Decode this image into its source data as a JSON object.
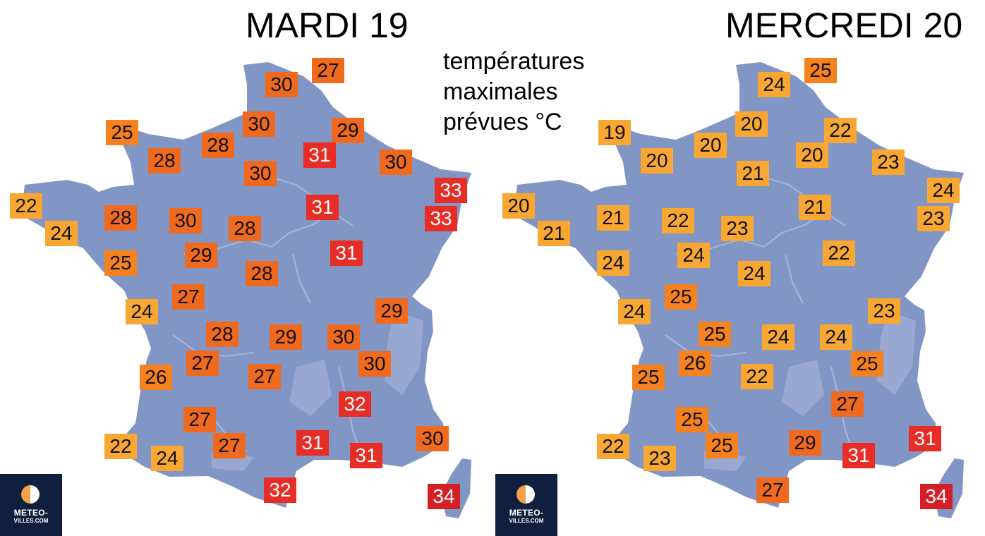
{
  "legend": [
    "températures",
    "maximales",
    "prévues °C"
  ],
  "colors": {
    "map_fill": "#8296c6",
    "river": "#a7b4d8",
    "relief": "#9fadd4",
    "logo_bg": "#0f1f3d",
    "scale": {
      "low": "#f9a733",
      "mid": "#f5821f",
      "high": "#ef6a1f",
      "very_high": "#e82d26",
      "extreme": "#d41f27"
    }
  },
  "logo": {
    "line1": "METEO-",
    "line2": "VILLES.COM",
    "icon": "half-moon-logo-icon"
  },
  "maps": [
    {
      "title": "MARDI 19",
      "temps": [
        {
          "region": "cap-gris-nez",
          "value": "30"
        },
        {
          "region": "dunkerque",
          "value": "27"
        },
        {
          "region": "cherbourg",
          "value": "25"
        },
        {
          "region": "caen",
          "value": "28"
        },
        {
          "region": "rouen",
          "value": "28"
        },
        {
          "region": "amiens",
          "value": "30"
        },
        {
          "region": "charleville",
          "value": "29"
        },
        {
          "region": "reims",
          "value": "31"
        },
        {
          "region": "paris",
          "value": "30"
        },
        {
          "region": "metz",
          "value": "30"
        },
        {
          "region": "strasbourg",
          "value": "33"
        },
        {
          "region": "colmar",
          "value": "33"
        },
        {
          "region": "troyes",
          "value": "31"
        },
        {
          "region": "brest",
          "value": "22"
        },
        {
          "region": "quimper",
          "value": "24"
        },
        {
          "region": "rennes",
          "value": "28"
        },
        {
          "region": "le-mans",
          "value": "30"
        },
        {
          "region": "orleans",
          "value": "28"
        },
        {
          "region": "dijon",
          "value": "31"
        },
        {
          "region": "nantes",
          "value": "25"
        },
        {
          "region": "tours",
          "value": "29"
        },
        {
          "region": "bourges",
          "value": "28"
        },
        {
          "region": "poitiers",
          "value": "27"
        },
        {
          "region": "la-rochelle",
          "value": "24"
        },
        {
          "region": "geneve",
          "value": "29"
        },
        {
          "region": "limoges",
          "value": "28"
        },
        {
          "region": "clermont",
          "value": "29"
        },
        {
          "region": "lyon",
          "value": "30"
        },
        {
          "region": "grenoble",
          "value": "30"
        },
        {
          "region": "perigueux",
          "value": "27"
        },
        {
          "region": "bordeaux",
          "value": "26"
        },
        {
          "region": "aurillac",
          "value": "27"
        },
        {
          "region": "montelimar",
          "value": "32"
        },
        {
          "region": "agen",
          "value": "27"
        },
        {
          "region": "biarritz",
          "value": "22"
        },
        {
          "region": "pau",
          "value": "24"
        },
        {
          "region": "toulouse",
          "value": "27"
        },
        {
          "region": "montpellier",
          "value": "31"
        },
        {
          "region": "marseille",
          "value": "31"
        },
        {
          "region": "nice",
          "value": "30"
        },
        {
          "region": "perpignan",
          "value": "32"
        },
        {
          "region": "ajaccio",
          "value": "34"
        }
      ]
    },
    {
      "title": "MERCREDI 20",
      "temps": [
        {
          "region": "cap-gris-nez",
          "value": "24"
        },
        {
          "region": "dunkerque",
          "value": "25"
        },
        {
          "region": "cherbourg",
          "value": "19"
        },
        {
          "region": "caen",
          "value": "20"
        },
        {
          "region": "rouen",
          "value": "20"
        },
        {
          "region": "amiens",
          "value": "20"
        },
        {
          "region": "charleville",
          "value": "22"
        },
        {
          "region": "reims",
          "value": "20"
        },
        {
          "region": "paris",
          "value": "21"
        },
        {
          "region": "metz",
          "value": "23"
        },
        {
          "region": "strasbourg",
          "value": "24"
        },
        {
          "region": "colmar",
          "value": "23"
        },
        {
          "region": "troyes",
          "value": "21"
        },
        {
          "region": "brest",
          "value": "20"
        },
        {
          "region": "quimper",
          "value": "21"
        },
        {
          "region": "rennes",
          "value": "21"
        },
        {
          "region": "le-mans",
          "value": "22"
        },
        {
          "region": "orleans",
          "value": "23"
        },
        {
          "region": "dijon",
          "value": "22"
        },
        {
          "region": "nantes",
          "value": "24"
        },
        {
          "region": "tours",
          "value": "24"
        },
        {
          "region": "bourges",
          "value": "24"
        },
        {
          "region": "poitiers",
          "value": "25"
        },
        {
          "region": "la-rochelle",
          "value": "24"
        },
        {
          "region": "geneve",
          "value": "23"
        },
        {
          "region": "limoges",
          "value": "25"
        },
        {
          "region": "clermont",
          "value": "24"
        },
        {
          "region": "lyon",
          "value": "24"
        },
        {
          "region": "grenoble",
          "value": "25"
        },
        {
          "region": "perigueux",
          "value": "26"
        },
        {
          "region": "bordeaux",
          "value": "25"
        },
        {
          "region": "aurillac",
          "value": "22"
        },
        {
          "region": "montelimar",
          "value": "27"
        },
        {
          "region": "agen",
          "value": "25"
        },
        {
          "region": "biarritz",
          "value": "22"
        },
        {
          "region": "pau",
          "value": "23"
        },
        {
          "region": "toulouse",
          "value": "25"
        },
        {
          "region": "montpellier",
          "value": "29"
        },
        {
          "region": "marseille",
          "value": "31"
        },
        {
          "region": "nice",
          "value": "31"
        },
        {
          "region": "perpignan",
          "value": "27"
        },
        {
          "region": "ajaccio",
          "value": "34"
        }
      ]
    }
  ]
}
